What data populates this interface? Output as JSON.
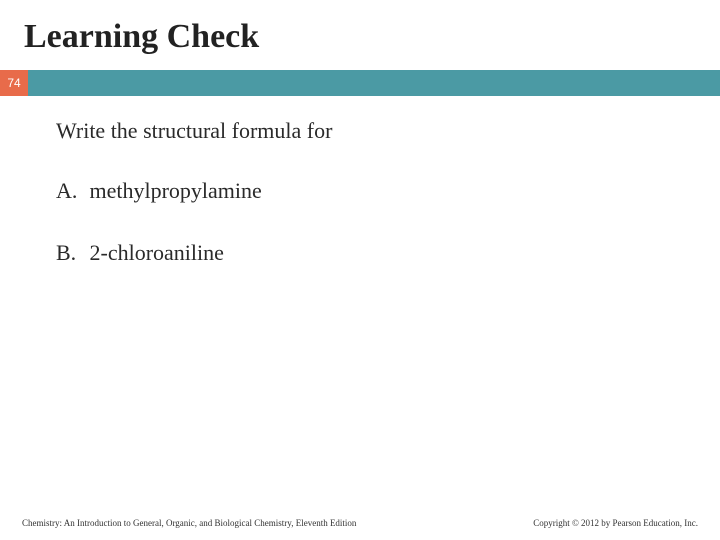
{
  "title": "Learning Check",
  "page_number": "74",
  "prompt": "Write the structural formula for",
  "items": [
    {
      "label": "A.",
      "text": "methylpropylamine"
    },
    {
      "label": "B.",
      "text": "2-chloroaniline"
    }
  ],
  "footer_left": "Chemistry: An Introduction to General, Organic, and Biological Chemistry, Eleventh Edition",
  "footer_right": "Copyright © 2012 by Pearson Education, Inc.",
  "colors": {
    "accent": "#e86b4a",
    "bar": "#4b9aa4",
    "text": "#2a2a2a",
    "background": "#ffffff"
  },
  "fontsizes": {
    "title": 34,
    "body": 22,
    "footer": 9,
    "pagenum": 12
  }
}
